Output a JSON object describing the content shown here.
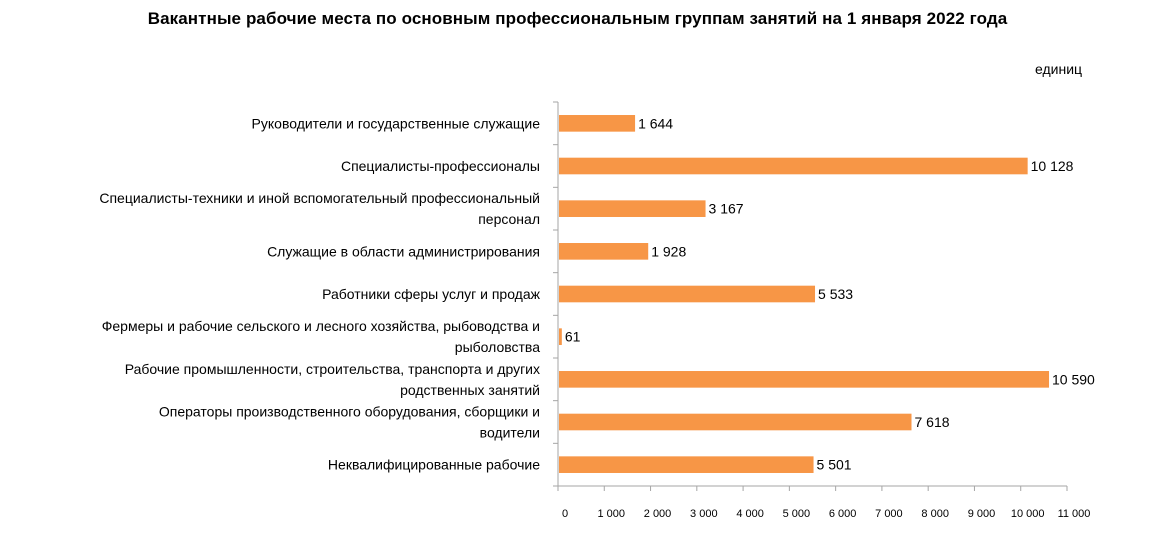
{
  "chart_data": {
    "type": "bar",
    "orientation": "horizontal",
    "title": "Вакантные рабочие места по основным  профессиональным  группам занятий на 1 января 2022 года",
    "units": "единиц",
    "categories": [
      [
        "Руководители и государственные служащие"
      ],
      [
        "Специалисты-профессионалы"
      ],
      [
        "Специалисты-техники  и иной вспомогательный профессиональный",
        "персонал"
      ],
      [
        "Служащие в области администрирования"
      ],
      [
        "Работники сферы услуг и продаж"
      ],
      [
        "Фермеры и рабочие сельского и лесного хозяйства, рыбоводства и",
        "рыболовства"
      ],
      [
        "Рабочие промышленности, строительства, транспорта и других",
        "родственных занятий"
      ],
      [
        "Операторы производственного оборудования, сборщики и",
        "водители"
      ],
      [
        "Неквалифицированные рабочие"
      ]
    ],
    "values": [
      1644,
      10128,
      3167,
      1928,
      5533,
      61,
      10590,
      7618,
      5501
    ],
    "value_labels": [
      "1 644",
      "10 128",
      "3 167",
      "1 928",
      "5 533",
      "61",
      "10 590",
      "7 618",
      "5 501"
    ],
    "xlim": [
      0,
      11000
    ],
    "x_ticks": [
      0,
      1000,
      2000,
      3000,
      4000,
      5000,
      6000,
      7000,
      8000,
      9000,
      10000,
      11000
    ],
    "x_tick_labels": [
      "0",
      "1 000",
      "2 000",
      "3 000",
      "4 000",
      "5 000",
      "6 000",
      "7 000",
      "8 000",
      "9 000",
      "10 000",
      "11 000"
    ],
    "bar_color": "#F79646",
    "axis_color": "#A6A6A6",
    "grid": false,
    "legend": "none"
  }
}
